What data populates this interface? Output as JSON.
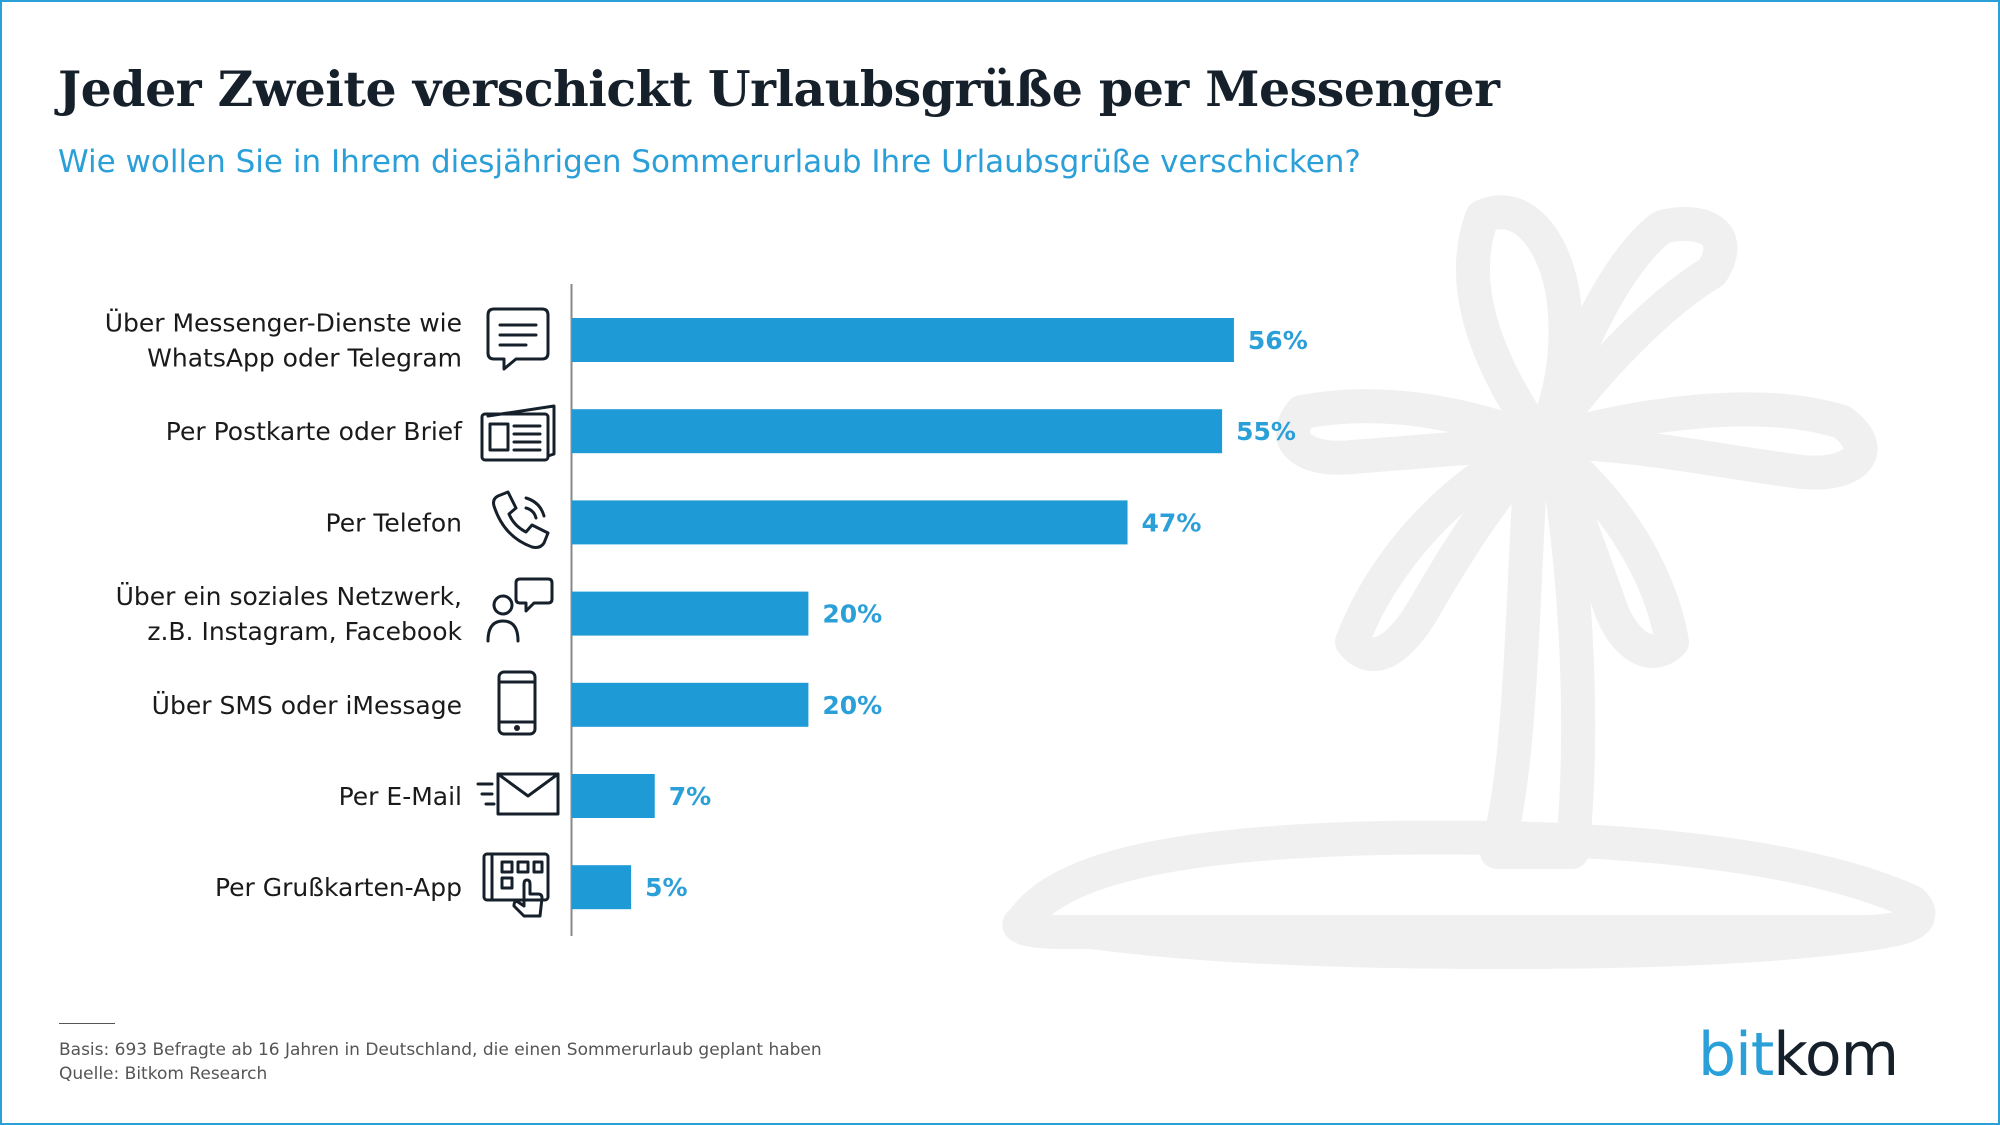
{
  "title": "Jeder Zweite verschickt Urlaubsgrüße per Messenger",
  "subtitle": "Wie wollen Sie in Ihrem diesjährigen Sommerurlaub Ihre Urlaubsgrüße verschicken?",
  "footnote": {
    "basis": "Basis: 693 Befragte ab 16 Jahren in Deutschland, die einen Sommerurlaub geplant haben",
    "source": "Quelle: Bitkom Research"
  },
  "logo": {
    "part1": "bit",
    "part2": "kom"
  },
  "colors": {
    "bar": "#1e9bd7",
    "accent": "#2a9fd8",
    "title": "#15202b",
    "background_art": "#f0f0f0"
  },
  "chart_data": {
    "type": "bar",
    "orientation": "horizontal",
    "xlim": [
      0,
      100
    ],
    "unit": "%",
    "grid": false,
    "categories": [
      [
        "Über Messenger-Dienste wie",
        "WhatsApp oder Telegram"
      ],
      [
        "Per Postkarte oder Brief"
      ],
      [
        "Per Telefon"
      ],
      [
        "Über ein soziales Netzwerk,",
        "z.B. Instagram, Facebook"
      ],
      [
        "Über SMS oder iMessage"
      ],
      [
        "Per E-Mail"
      ],
      [
        "Per Grußkarten-App"
      ]
    ],
    "values": [
      56,
      55,
      47,
      20,
      20,
      7,
      5
    ],
    "value_labels": [
      "56%",
      "55%",
      "47%",
      "20%",
      "20%",
      "7%",
      "5%"
    ],
    "icons": [
      "chat-bubble-icon",
      "newspaper-letter-icon",
      "phone-icon",
      "social-network-icon",
      "smartphone-icon",
      "email-icon",
      "greeting-card-app-icon"
    ]
  }
}
